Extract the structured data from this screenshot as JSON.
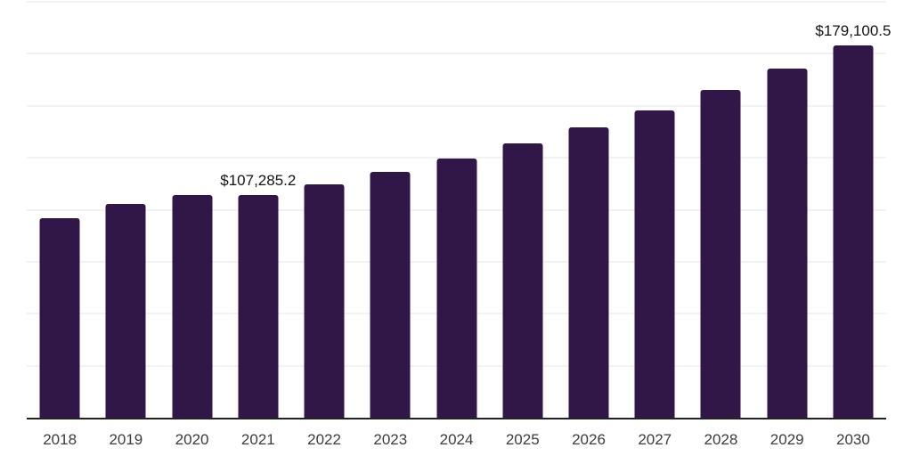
{
  "chart_data": {
    "type": "bar",
    "title": "",
    "xlabel": "",
    "ylabel": "",
    "categories": [
      "2018",
      "2019",
      "2020",
      "2021",
      "2022",
      "2023",
      "2024",
      "2025",
      "2026",
      "2027",
      "2028",
      "2029",
      "2030"
    ],
    "values": [
      96100,
      103000,
      106900,
      107285.2,
      112400,
      118000,
      124500,
      131800,
      139500,
      147700,
      157600,
      167900,
      179100.5
    ],
    "bar_labels": [
      "",
      "",
      "",
      "$107,285.2",
      "",
      "",
      "",
      "",
      "",
      "",
      "",
      "",
      "$179,100.5"
    ],
    "ylim": [
      0,
      200000
    ],
    "gridline_step": 25000,
    "grid": "horizontal-only",
    "y_tick_labels_visible": false,
    "legend_position": "none",
    "colors": {
      "bar": "#311747",
      "gridline": "#f2f2f2",
      "axis_line": "#232323",
      "tick_label": "#3c3c3c",
      "data_label": "#141414",
      "background": "#ffffff"
    }
  }
}
